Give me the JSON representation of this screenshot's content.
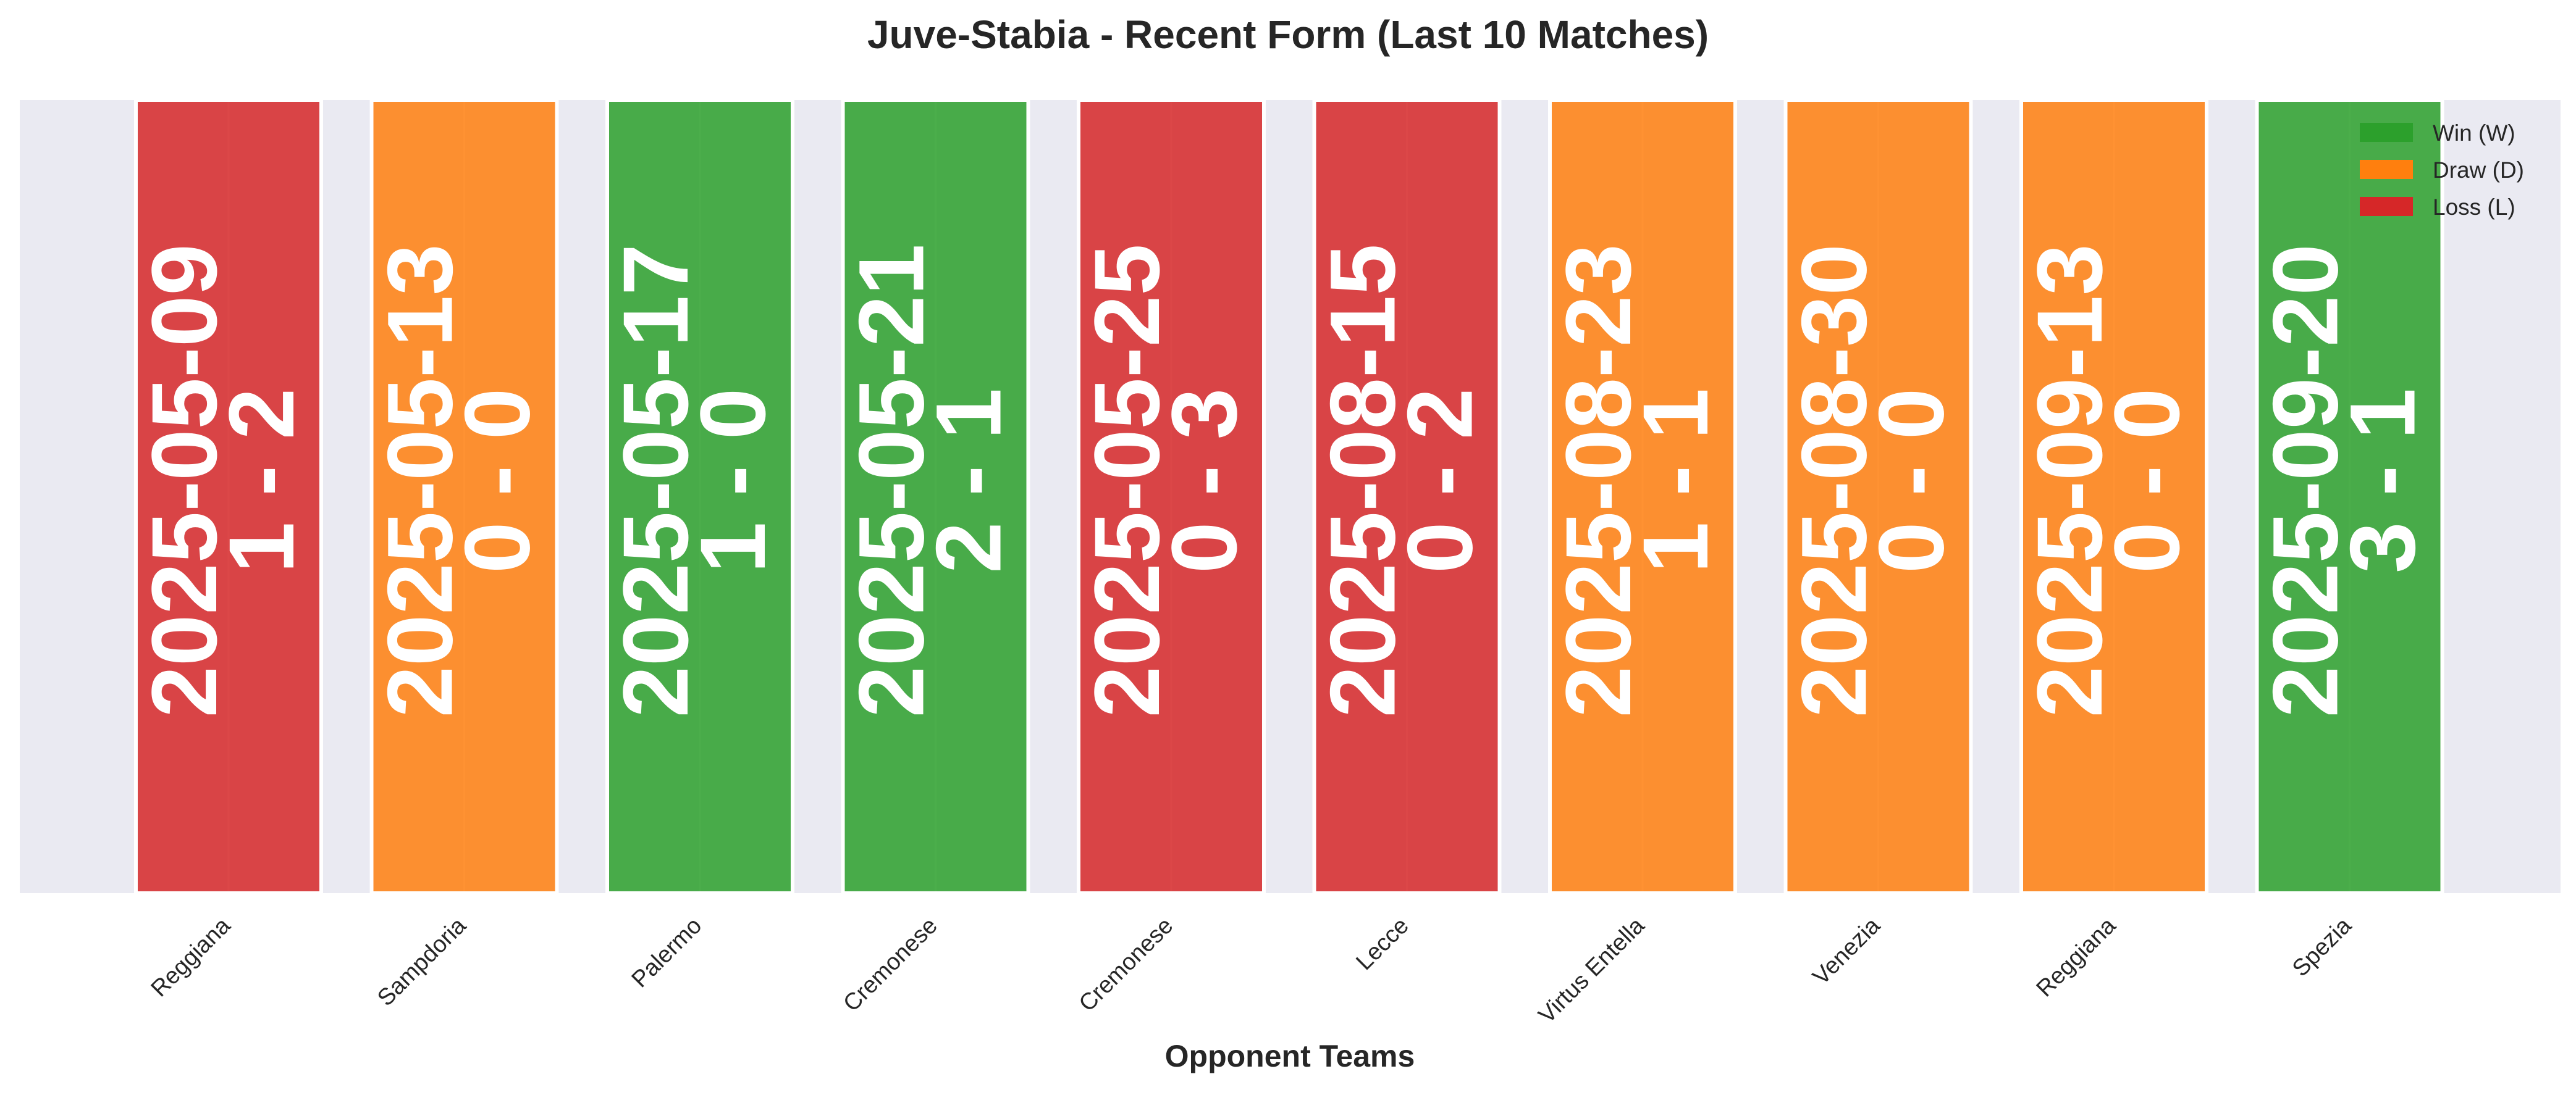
{
  "chart_data": {
    "type": "bar",
    "title": "Juve-Stabia - Recent Form (Last 10 Matches)",
    "xlabel": "Opponent Teams",
    "ylabel": "",
    "grid": true,
    "legend_placement": "top-right",
    "categories": [
      "Reggiana",
      "Sampdoria",
      "Palermo",
      "Cremonese",
      "Cremonese",
      "Lecce",
      "Virtus Entella",
      "Venezia",
      "Reggiana",
      "Spezia"
    ],
    "values": [
      1,
      1,
      1,
      1,
      1,
      1,
      1,
      1,
      1,
      1
    ],
    "ylim": [
      0,
      1
    ],
    "matches": [
      {
        "opponent": "Reggiana",
        "date": "2025-05-09",
        "score": "1 - 2",
        "result": "L"
      },
      {
        "opponent": "Sampdoria",
        "date": "2025-05-13",
        "score": "0 - 0",
        "result": "D"
      },
      {
        "opponent": "Palermo",
        "date": "2025-05-17",
        "score": "1 - 0",
        "result": "W"
      },
      {
        "opponent": "Cremonese",
        "date": "2025-05-21",
        "score": "2 - 1",
        "result": "W"
      },
      {
        "opponent": "Cremonese",
        "date": "2025-05-25",
        "score": "0 - 3",
        "result": "L"
      },
      {
        "opponent": "Lecce",
        "date": "2025-08-15",
        "score": "0 - 2",
        "result": "L"
      },
      {
        "opponent": "Virtus Entella",
        "date": "2025-08-23",
        "score": "1 - 1",
        "result": "D"
      },
      {
        "opponent": "Venezia",
        "date": "2025-08-30",
        "score": "0 - 0",
        "result": "D"
      },
      {
        "opponent": "Reggiana",
        "date": "2025-09-13",
        "score": "0 - 0",
        "result": "D"
      },
      {
        "opponent": "Spezia",
        "date": "2025-09-20",
        "score": "3 - 1",
        "result": "W"
      }
    ],
    "legend": [
      {
        "key": "W",
        "label": "Win (W)",
        "color": "#2ca02c"
      },
      {
        "key": "D",
        "label": "Draw (D)",
        "color": "#ff7f0e"
      },
      {
        "key": "L",
        "label": "Loss (L)",
        "color": "#d62728"
      }
    ]
  },
  "colors": {
    "plot_background": "#eaeaf2",
    "grid": "#ffffff",
    "text": "#262626",
    "bar_label": "#ffffff"
  }
}
